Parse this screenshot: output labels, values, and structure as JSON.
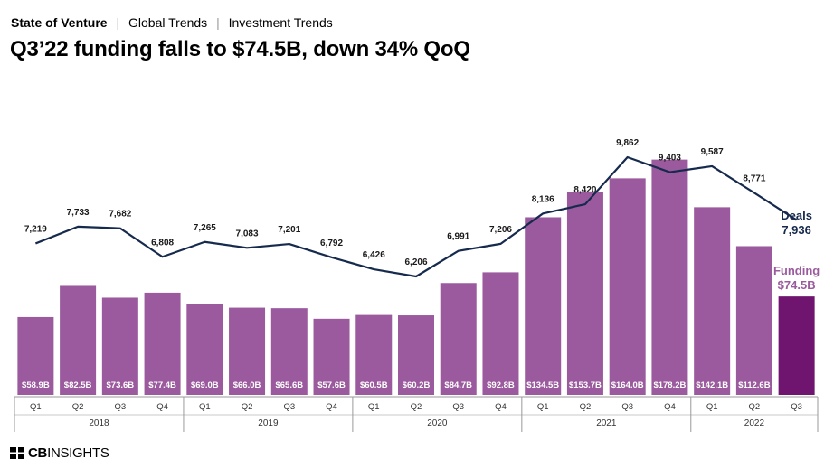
{
  "header": {
    "brand": "State of Venture",
    "crumb1": "Global Trends",
    "crumb2": "Investment Trends",
    "separator": "|"
  },
  "title": "Q3’22 funding falls to $74.5B, down 34% QoQ",
  "logo": {
    "part1": "CB",
    "part2": "INSIGHTS"
  },
  "colors": {
    "bar": "#9b5a9e",
    "bar_highlight": "#6f1570",
    "line": "#162a4d",
    "axis": "#9a9a9a",
    "grid_sep": "#c8c8c8"
  },
  "chart_data": {
    "type": "bar",
    "title": "Q3’22 funding falls to $74.5B, down 34% QoQ",
    "categories": [
      "Q1",
      "Q2",
      "Q3",
      "Q4",
      "Q1",
      "Q2",
      "Q3",
      "Q4",
      "Q1",
      "Q2",
      "Q3",
      "Q4",
      "Q1",
      "Q2",
      "Q3",
      "Q4",
      "Q1",
      "Q2",
      "Q3"
    ],
    "years": [
      {
        "label": "2018",
        "count": 4
      },
      {
        "label": "2019",
        "count": 4
      },
      {
        "label": "2020",
        "count": 4
      },
      {
        "label": "2021",
        "count": 4
      },
      {
        "label": "2022",
        "count": 3
      }
    ],
    "series": [
      {
        "name": "Funding",
        "kind": "bar",
        "unit": "$B",
        "values": [
          58.9,
          82.5,
          73.6,
          77.4,
          69.0,
          66.0,
          65.6,
          57.6,
          60.5,
          60.2,
          84.7,
          92.8,
          134.5,
          153.7,
          164.0,
          178.2,
          142.1,
          112.6,
          74.5
        ],
        "labels": [
          "$58.9B",
          "$82.5B",
          "$73.6B",
          "$77.4B",
          "$69.0B",
          "$66.0B",
          "$65.6B",
          "$57.6B",
          "$60.5B",
          "$60.2B",
          "$84.7B",
          "$92.8B",
          "$134.5B",
          "$153.7B",
          "$164.0B",
          "$178.2B",
          "$142.1B",
          "$112.6B",
          ""
        ]
      },
      {
        "name": "Deals",
        "kind": "line",
        "values": [
          7219,
          7733,
          7682,
          6808,
          7265,
          7083,
          7201,
          6792,
          6426,
          6206,
          6991,
          7206,
          8136,
          8420,
          9862,
          9403,
          9587,
          8771,
          7936
        ],
        "labels": [
          "7,219",
          "7,733",
          "7,682",
          "6,808",
          "7,265",
          "7,083",
          "7,201",
          "6,792",
          "6,426",
          "6,206",
          "6,991",
          "7,206",
          "8,136",
          "8,420",
          "9,862",
          "9,403",
          "9,587",
          "8,771",
          ""
        ]
      }
    ],
    "callouts": {
      "deals_name": "Deals",
      "deals_value": "7,936",
      "funding_name": "Funding",
      "funding_value": "$74.5B"
    },
    "funding_ylim": [
      0,
      180
    ],
    "deals_ylim": [
      0,
      14000
    ],
    "legend": "none"
  }
}
